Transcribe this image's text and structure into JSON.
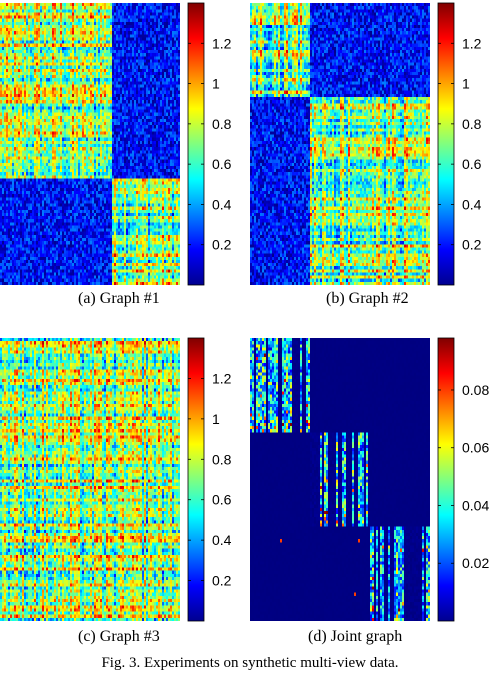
{
  "chart_data": [
    {
      "type": "heatmap",
      "caption": "(a) Graph #1",
      "colormap": "jet",
      "clim": [
        0,
        1.4
      ],
      "colorbar_ticks": [
        0.2,
        0.4,
        0.6,
        0.8,
        1,
        1.2
      ],
      "colorbar_labels": [
        "0.2",
        "0.4",
        "0.6",
        "0.8",
        "1",
        "1.2"
      ],
      "pattern": "two dense diagonal blocks: large top-left block (~62% of nodes) and small bottom-right block; off-diagonal values low (~0.05-0.35)",
      "block_fractions": [
        0.62,
        0.38
      ],
      "in_block_value_range": [
        0.1,
        1.35
      ],
      "off_block_value_range": [
        0.02,
        0.35
      ]
    },
    {
      "type": "heatmap",
      "caption": "(b) Graph #2",
      "colormap": "jet",
      "clim": [
        0,
        1.4
      ],
      "colorbar_ticks": [
        0.2,
        0.4,
        0.6,
        0.8,
        1,
        1.2
      ],
      "colorbar_labels": [
        "0.2",
        "0.4",
        "0.6",
        "0.8",
        "1",
        "1.2"
      ],
      "pattern": "two dense diagonal blocks: small top-left block (~33% of nodes) and large bottom-right block; off-diagonal values low",
      "block_fractions": [
        0.33,
        0.67
      ],
      "in_block_value_range": [
        0.1,
        1.35
      ],
      "off_block_value_range": [
        0.02,
        0.35
      ]
    },
    {
      "type": "heatmap",
      "caption": "(c) Graph #3",
      "colormap": "jet",
      "clim": [
        0,
        1.4
      ],
      "colorbar_ticks": [
        0.2,
        0.4,
        0.6,
        0.8,
        1,
        1.2
      ],
      "colorbar_labels": [
        "0.2",
        "0.4",
        "0.6",
        "0.8",
        "1",
        "1.2"
      ],
      "pattern": "no block structure; uniformly noisy values across the whole matrix",
      "block_fractions": [
        1.0
      ],
      "in_block_value_range": [
        0.1,
        1.35
      ],
      "off_block_value_range": [
        0.1,
        1.35
      ]
    },
    {
      "type": "heatmap",
      "caption": "(d) Joint graph",
      "colormap": "jet",
      "clim": [
        0,
        0.098
      ],
      "colorbar_ticks": [
        0.02,
        0.04,
        0.06,
        0.08
      ],
      "colorbar_labels": [
        "0.02",
        "0.04",
        "0.06",
        "0.08"
      ],
      "pattern": "three sparse diagonal blocks of vertical streaks; near-zero elsewhere with a few isolated spikes",
      "block_fractions": [
        0.333,
        0.333,
        0.334
      ],
      "in_block_value_range": [
        0.0,
        0.095
      ],
      "off_block_value_range": [
        0.0,
        0.001
      ]
    }
  ],
  "figure_caption": "Fig. 3.   Experiments on synthetic multi-view data."
}
